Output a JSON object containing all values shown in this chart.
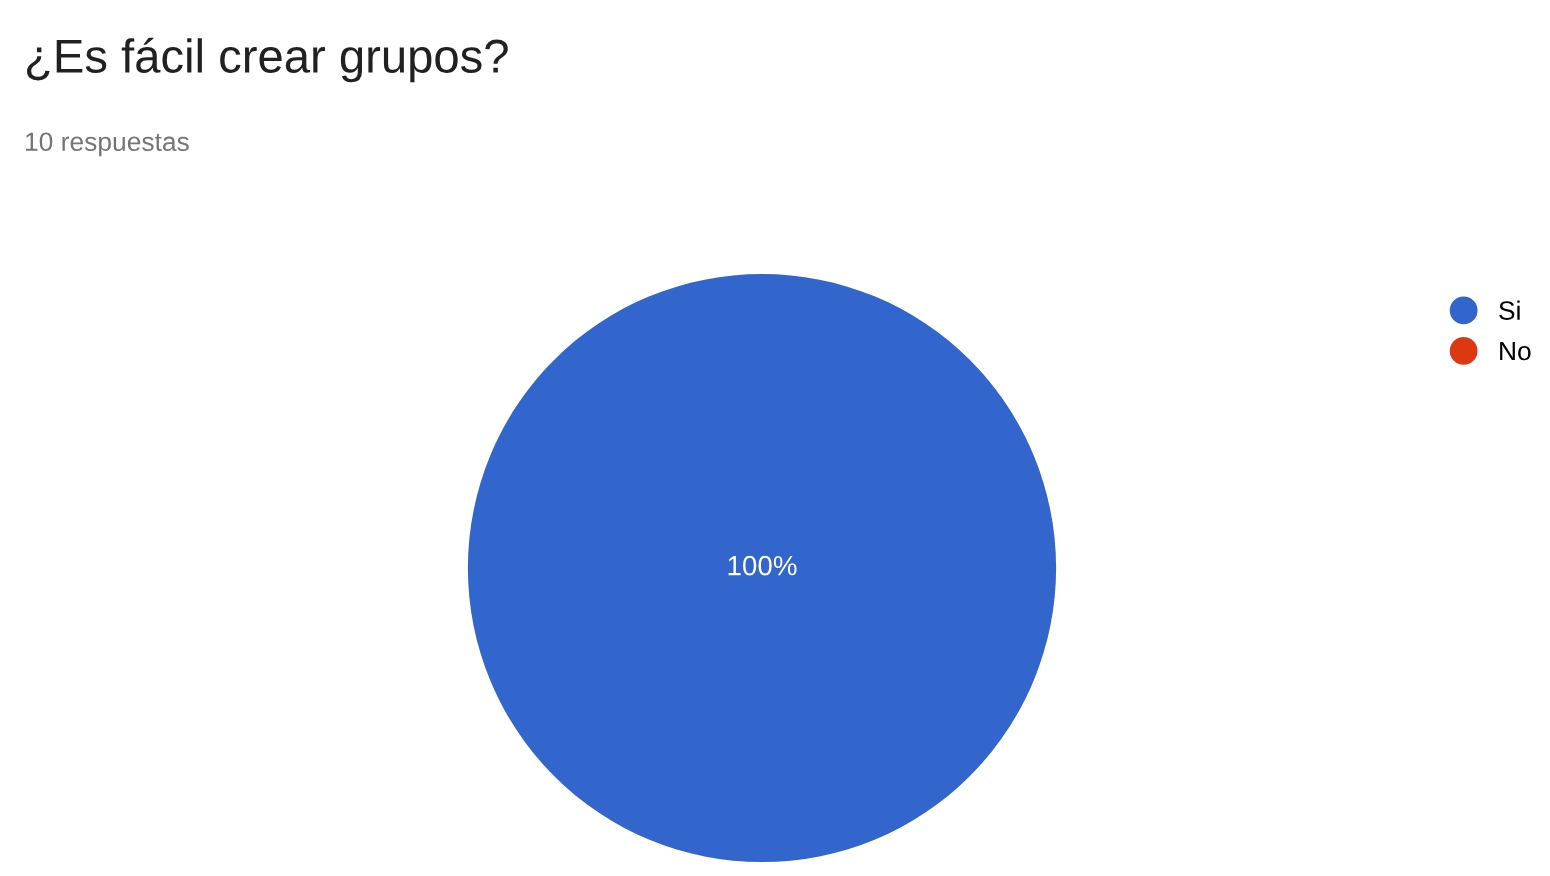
{
  "chart_data": {
    "type": "pie",
    "title": "¿Es fácil crear grupos?",
    "subtitle": "10 respuestas",
    "categories": [
      "Si",
      "No"
    ],
    "values": [
      100,
      0
    ],
    "colors": [
      "#3366cc",
      "#dc3912"
    ],
    "value_labels": [
      "100%",
      null
    ],
    "legend": "top right"
  }
}
